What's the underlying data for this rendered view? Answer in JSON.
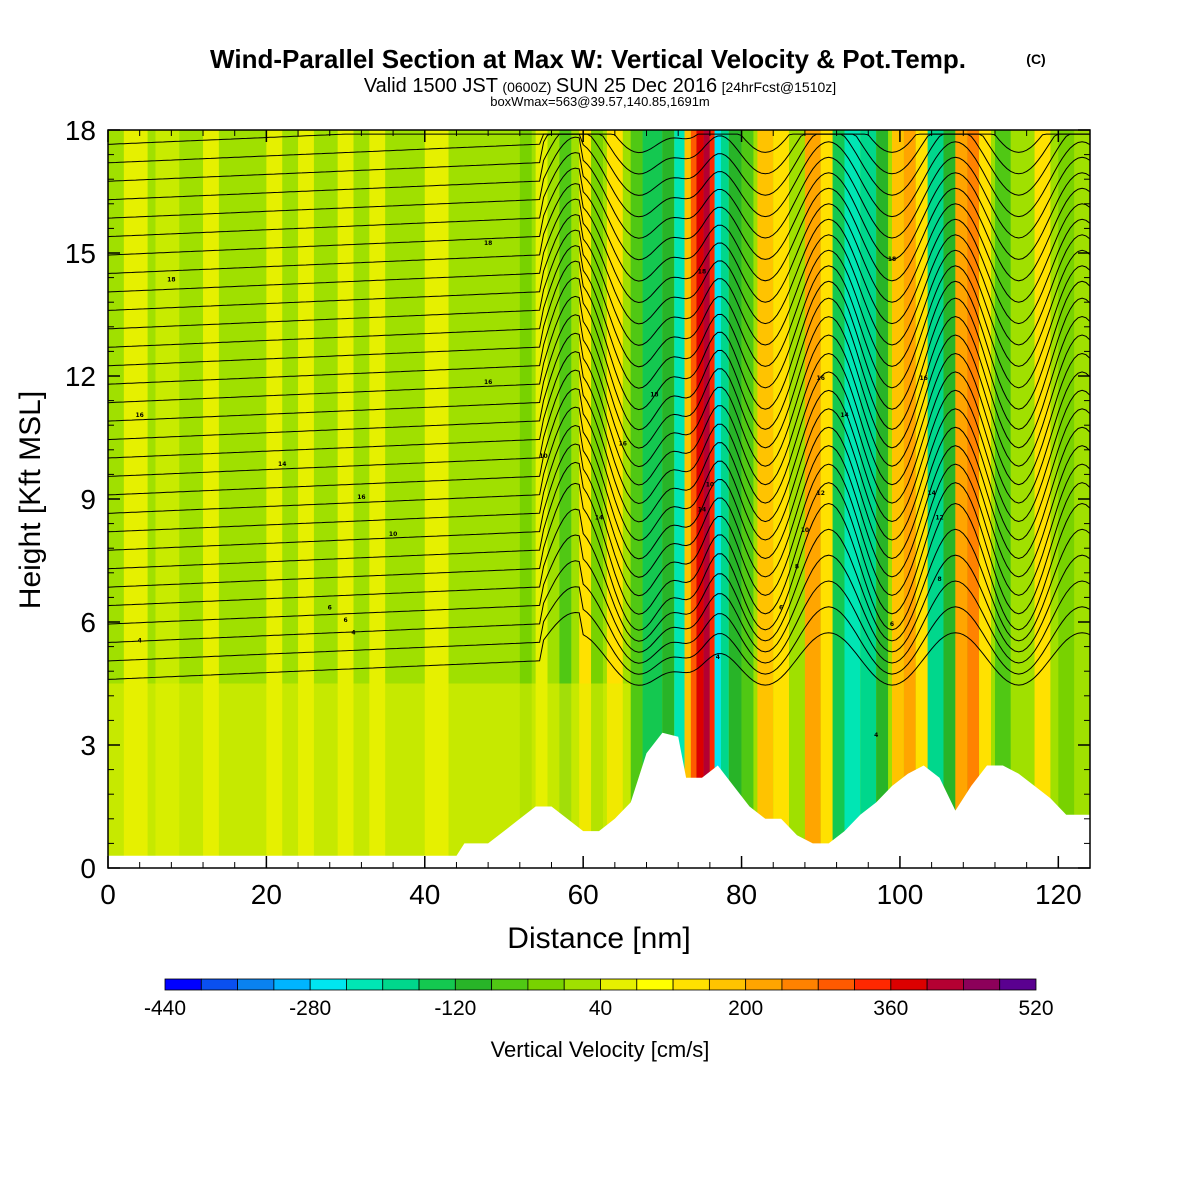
{
  "chart_data": {
    "type": "heatmap",
    "title": "Wind-Parallel Section at Max W: Vertical Velocity & Pot.Temp.",
    "title_mark": "(C)",
    "subtitle_parts": [
      "Valid 1500 JST",
      "(0600Z)",
      "SUN 25 Dec 2016",
      "[24hrFcst@1510z]"
    ],
    "subtitle2": "boxWmax=563@39.57,140.85,1691m",
    "xlabel": "Distance [nm]",
    "ylabel": "Height [Kft MSL]",
    "xlim": [
      0,
      124
    ],
    "ylim": [
      0,
      18
    ],
    "xticks": [
      0,
      20,
      40,
      60,
      80,
      100,
      120
    ],
    "yticks": [
      0,
      3,
      6,
      9,
      12,
      15,
      18
    ],
    "colorbar": {
      "label": "Vertical Velocity [cm/s]",
      "levels": [
        -440,
        -400,
        -360,
        -320,
        -280,
        -240,
        -200,
        -160,
        -120,
        -80,
        -40,
        0,
        40,
        80,
        120,
        160,
        200,
        240,
        280,
        320,
        360,
        400,
        440,
        480,
        520
      ],
      "ticklabels": [
        -440,
        -280,
        -120,
        40,
        200,
        360,
        520
      ],
      "colors": [
        "#0000ff",
        "#0a50f0",
        "#0a82f0",
        "#00b4ff",
        "#00e6f0",
        "#00e6b4",
        "#00d78c",
        "#14c850",
        "#28b428",
        "#50c814",
        "#78d200",
        "#a0e000",
        "#e6f000",
        "#ffff00",
        "#ffe100",
        "#ffc300",
        "#ffa500",
        "#ff8200",
        "#ff5a00",
        "#ff2800",
        "#dc0000",
        "#b40032",
        "#8c005a",
        "#5a0090"
      ]
    },
    "terrain_kft": [
      [
        0,
        0.3
      ],
      [
        5,
        0.3
      ],
      [
        10,
        0.3
      ],
      [
        15,
        0.3
      ],
      [
        20,
        0.3
      ],
      [
        25,
        0.3
      ],
      [
        30,
        0.3
      ],
      [
        35,
        0.3
      ],
      [
        40,
        0.3
      ],
      [
        44,
        0.3
      ],
      [
        45,
        0.6
      ],
      [
        48,
        0.6
      ],
      [
        50,
        0.9
      ],
      [
        52,
        1.2
      ],
      [
        54,
        1.5
      ],
      [
        56,
        1.5
      ],
      [
        58,
        1.2
      ],
      [
        60,
        0.9
      ],
      [
        62,
        0.9
      ],
      [
        64,
        1.2
      ],
      [
        66,
        1.6
      ],
      [
        68,
        2.8
      ],
      [
        70,
        3.3
      ],
      [
        72,
        3.2
      ],
      [
        73,
        2.2
      ],
      [
        75,
        2.2
      ],
      [
        77,
        2.5
      ],
      [
        79,
        2.0
      ],
      [
        81,
        1.5
      ],
      [
        83,
        1.2
      ],
      [
        85,
        1.2
      ],
      [
        87,
        0.8
      ],
      [
        89,
        0.6
      ],
      [
        91,
        0.6
      ],
      [
        93,
        0.9
      ],
      [
        95,
        1.3
      ],
      [
        97,
        1.6
      ],
      [
        99,
        2.0
      ],
      [
        101,
        2.3
      ],
      [
        103,
        2.5
      ],
      [
        105,
        2.2
      ],
      [
        107,
        1.4
      ],
      [
        109,
        2.0
      ],
      [
        111,
        2.5
      ],
      [
        113,
        2.5
      ],
      [
        115,
        2.3
      ],
      [
        117,
        2.0
      ],
      [
        119,
        1.7
      ],
      [
        121,
        1.3
      ],
      [
        124,
        1.3
      ]
    ],
    "theta_contour_labels": [
      "4",
      "6",
      "8",
      "10",
      "12",
      "14",
      "16",
      "18"
    ]
  }
}
